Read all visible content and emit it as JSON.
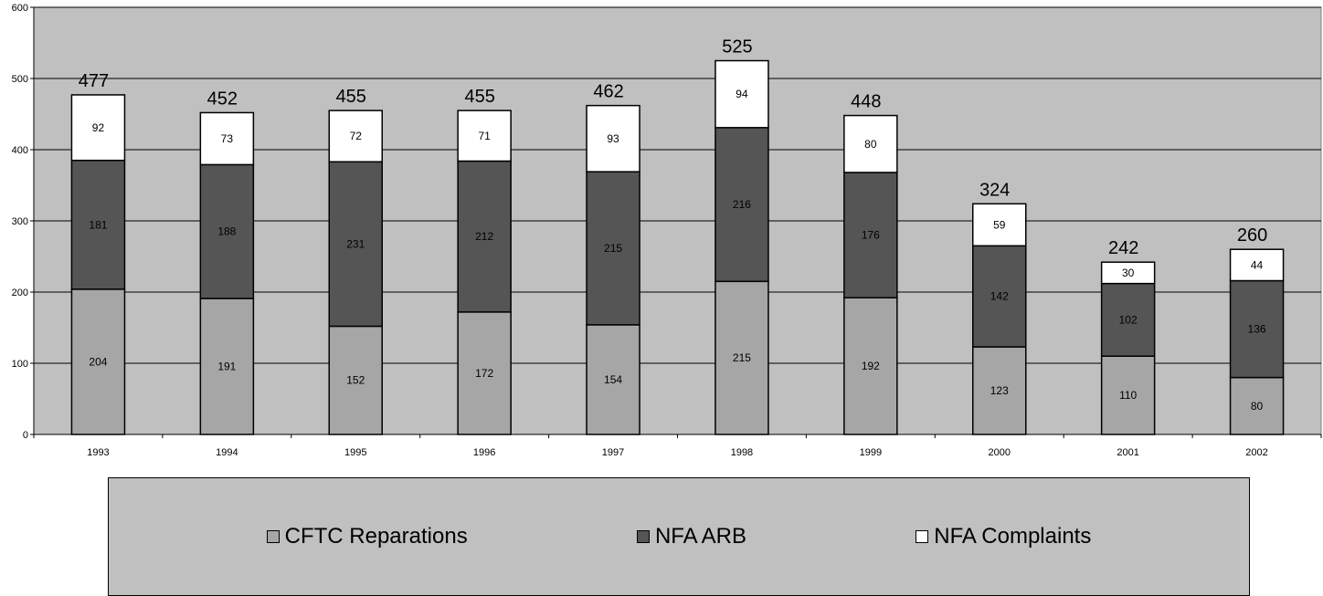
{
  "chart_data": {
    "type": "bar",
    "stacked": true,
    "categories": [
      "1993",
      "1994",
      "1995",
      "1996",
      "1997",
      "1998",
      "1999",
      "2000",
      "2001",
      "2002"
    ],
    "series": [
      {
        "name": "CFTC Reparations",
        "color": "#a6a6a6",
        "values": [
          204,
          191,
          152,
          172,
          154,
          215,
          192,
          123,
          110,
          80
        ]
      },
      {
        "name": "NFA ARB",
        "color": "#555555",
        "values": [
          181,
          188,
          231,
          212,
          215,
          216,
          176,
          142,
          102,
          136
        ]
      },
      {
        "name": "NFA Complaints",
        "color": "#ffffff",
        "values": [
          92,
          73,
          72,
          71,
          93,
          94,
          80,
          59,
          30,
          44
        ]
      }
    ],
    "totals": [
      477,
      452,
      455,
      455,
      462,
      525,
      448,
      324,
      242,
      260
    ],
    "title": "",
    "xlabel": "",
    "ylabel": "",
    "ylim": [
      0,
      600
    ],
    "yticks": [
      0,
      100,
      200,
      300,
      400,
      500,
      600
    ],
    "grid": true,
    "plot_background": "#c0c0c0",
    "legend_position": "bottom"
  }
}
